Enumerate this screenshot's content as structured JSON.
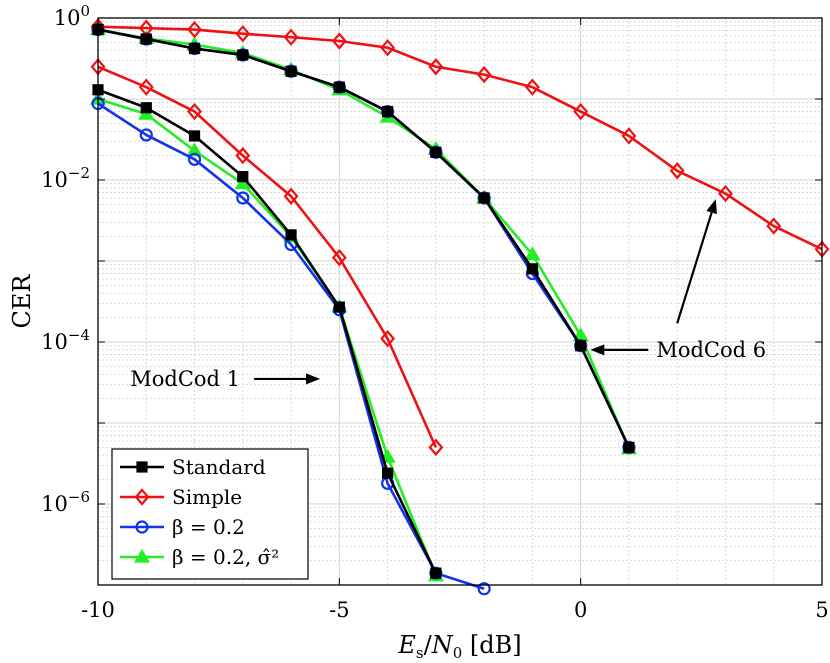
{
  "chart_data": {
    "type": "line",
    "xlabel": "E_s/N_0 [dB]",
    "ylabel": "CER",
    "x_scale": "linear",
    "y_scale": "log",
    "xlim": [
      -10,
      5
    ],
    "ylim": [
      1e-07,
      1
    ],
    "grid": true,
    "x_ticks": [
      -10,
      -5,
      0,
      5
    ],
    "x_tick_labels": [
      "-10",
      "-5",
      "0",
      "5"
    ],
    "y_ticks": [
      {
        "value": 1,
        "base": "10",
        "exp": "0"
      },
      {
        "value": 0.01,
        "base": "10",
        "exp": "−2"
      },
      {
        "value": 0.0001,
        "base": "10",
        "exp": "−4"
      },
      {
        "value": 1e-06,
        "base": "10",
        "exp": "−6"
      }
    ],
    "legend_location": "bottom-left",
    "series": [
      {
        "name": "Standard",
        "legend_label": "Standard",
        "color": "#000000",
        "marker": "square",
        "group": "ModCod 1",
        "x": [
          -10,
          -9,
          -8,
          -7,
          -6,
          -5,
          -4,
          -3
        ],
        "y": [
          0.13,
          0.078,
          0.035,
          0.011,
          0.0021,
          0.00027,
          2.4e-06,
          1.4e-07
        ]
      },
      {
        "name": "Simple",
        "legend_label": "Simple",
        "color": "#ee1111",
        "marker": "diamond",
        "group": "ModCod 1",
        "x": [
          -10,
          -9,
          -8,
          -7,
          -6,
          -5,
          -4,
          -3
        ],
        "y": [
          0.25,
          0.14,
          0.07,
          0.02,
          0.0063,
          0.0011,
          0.00011,
          5e-06
        ]
      },
      {
        "name": "beta = 0.2",
        "legend_label": "β = 0.2",
        "color": "#1133ee",
        "marker": "circle",
        "group": "ModCod 1",
        "x": [
          -10,
          -9,
          -8,
          -7,
          -6,
          -5,
          -4,
          -3,
          -2
        ],
        "y": [
          0.088,
          0.036,
          0.018,
          0.006,
          0.0016,
          0.00025,
          1.8e-06,
          1.4e-07,
          9e-08
        ]
      },
      {
        "name": "beta = 0.2, sigma-hat^2",
        "legend_label": "β = 0.2, σ̂²",
        "color": "#22ee22",
        "marker": "triangle",
        "group": "ModCod 1",
        "x": [
          -10,
          -9,
          -8,
          -7,
          -6,
          -5,
          -4,
          -3
        ],
        "y": [
          0.1,
          0.065,
          0.023,
          0.009,
          0.002,
          0.00027,
          3.8e-06,
          1.3e-07
        ]
      },
      {
        "name": "Standard",
        "legend_label": "",
        "color": "#000000",
        "marker": "square",
        "group": "ModCod 6",
        "x": [
          -10,
          -9,
          -8,
          -7,
          -6,
          -5,
          -4,
          -3,
          -2,
          -1,
          0,
          1
        ],
        "y": [
          0.72,
          0.55,
          0.42,
          0.35,
          0.22,
          0.14,
          0.07,
          0.022,
          0.006,
          0.0008,
          9e-05,
          5e-06
        ]
      },
      {
        "name": "Simple",
        "legend_label": "",
        "color": "#ee1111",
        "marker": "diamond",
        "group": "ModCod 6",
        "x": [
          -10,
          -9,
          -8,
          -7,
          -6,
          -5,
          -4,
          -3,
          -2,
          -1,
          0,
          1,
          2,
          3,
          4,
          5
        ],
        "y": [
          0.78,
          0.75,
          0.72,
          0.64,
          0.58,
          0.52,
          0.43,
          0.25,
          0.2,
          0.14,
          0.07,
          0.035,
          0.013,
          0.0068,
          0.0027,
          0.0014
        ]
      },
      {
        "name": "beta = 0.2",
        "legend_label": "",
        "color": "#1133ee",
        "marker": "circle",
        "group": "ModCod 6",
        "x": [
          -10,
          -9,
          -8,
          -7,
          -6,
          -5,
          -4,
          -3,
          -2,
          -1,
          0,
          1
        ],
        "y": [
          0.72,
          0.55,
          0.42,
          0.35,
          0.22,
          0.14,
          0.07,
          0.022,
          0.006,
          0.0007,
          9e-05,
          5e-06
        ]
      },
      {
        "name": "beta = 0.2, sigma-hat^2",
        "legend_label": "",
        "color": "#22ee22",
        "marker": "triangle",
        "group": "ModCod 6",
        "x": [
          -10,
          -9,
          -8,
          -7,
          -6,
          -5,
          -4,
          -3,
          -2,
          -1,
          0,
          1
        ],
        "y": [
          0.72,
          0.56,
          0.47,
          0.37,
          0.23,
          0.13,
          0.06,
          0.024,
          0.006,
          0.0012,
          0.00012,
          4.8e-06
        ]
      }
    ],
    "annotations": [
      {
        "text": "ModCod 1",
        "arrow_to": {
          "x": -5.4,
          "y": 3.5e-05
        }
      },
      {
        "text": "ModCod 6",
        "arrow_to": {
          "x": 0.2,
          "y": 8e-05
        }
      },
      {
        "text": "",
        "arrow_to": {
          "x": 2.8,
          "y": 0.0058
        },
        "arrow_from": {
          "x": 2.0,
          "y": 0.00017
        }
      }
    ]
  }
}
